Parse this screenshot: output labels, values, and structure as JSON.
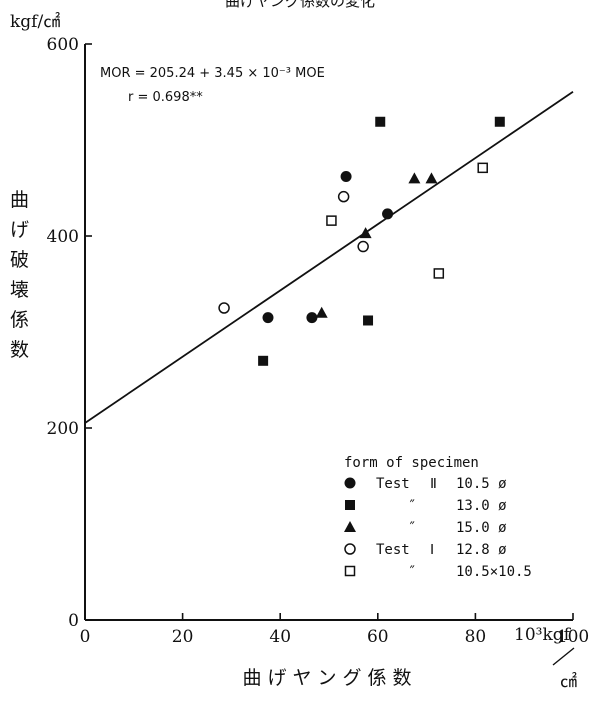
{
  "chart_data": {
    "type": "scatter",
    "title": "曲げヤング係数の変化",
    "xlabel": "曲げヤング係数",
    "ylabel": "曲げ破壊係数",
    "y_unit": "kgf/㎠",
    "x_unit_num": "10³kgf",
    "x_unit_den": "㎠",
    "xlim": [
      0,
      100
    ],
    "ylim": [
      0,
      600
    ],
    "x_ticks": [
      "0",
      "20",
      "40",
      "60",
      "80",
      "100"
    ],
    "y_ticks": [
      "0",
      "200",
      "400",
      "600"
    ],
    "grid": false,
    "regression": {
      "equation_html": "MOR = 205.24 + 3.45 × 10⁻³ MOE",
      "r_text": "r = 0.698**",
      "intercept": 205.24,
      "slope": 3.45
    },
    "legend": {
      "title": "form of specimen",
      "position": "bottom-right",
      "entries": [
        {
          "marker": "filled-circle",
          "group": "Test",
          "group_no": "Ⅱ",
          "size": "10.5 ø"
        },
        {
          "marker": "filled-square",
          "group": "″",
          "group_no": "",
          "size": "13.0 ø"
        },
        {
          "marker": "filled-triangle",
          "group": "″",
          "group_no": "",
          "size": "15.0 ø"
        },
        {
          "marker": "open-circle",
          "group": "Test",
          "group_no": "Ⅰ",
          "size": "12.8 ø"
        },
        {
          "marker": "open-square",
          "group": "″",
          "group_no": "",
          "size": "10.5×10.5"
        }
      ]
    },
    "series": [
      {
        "marker": "filled-circle",
        "points": [
          [
            37.5,
            315
          ],
          [
            46.5,
            315
          ],
          [
            53.5,
            462
          ],
          [
            62,
            423
          ]
        ]
      },
      {
        "marker": "filled-square",
        "points": [
          [
            36.5,
            270
          ],
          [
            58,
            312
          ],
          [
            60.5,
            519
          ],
          [
            85,
            519
          ]
        ]
      },
      {
        "marker": "filled-triangle",
        "points": [
          [
            48.5,
            320
          ],
          [
            57.5,
            403
          ],
          [
            67.5,
            460
          ],
          [
            71,
            460
          ]
        ]
      },
      {
        "marker": "open-circle",
        "points": [
          [
            28.5,
            325
          ],
          [
            53,
            441
          ],
          [
            57,
            389
          ]
        ]
      },
      {
        "marker": "open-square",
        "points": [
          [
            50.5,
            416
          ],
          [
            72.5,
            361
          ],
          [
            81.5,
            471
          ]
        ]
      }
    ]
  }
}
